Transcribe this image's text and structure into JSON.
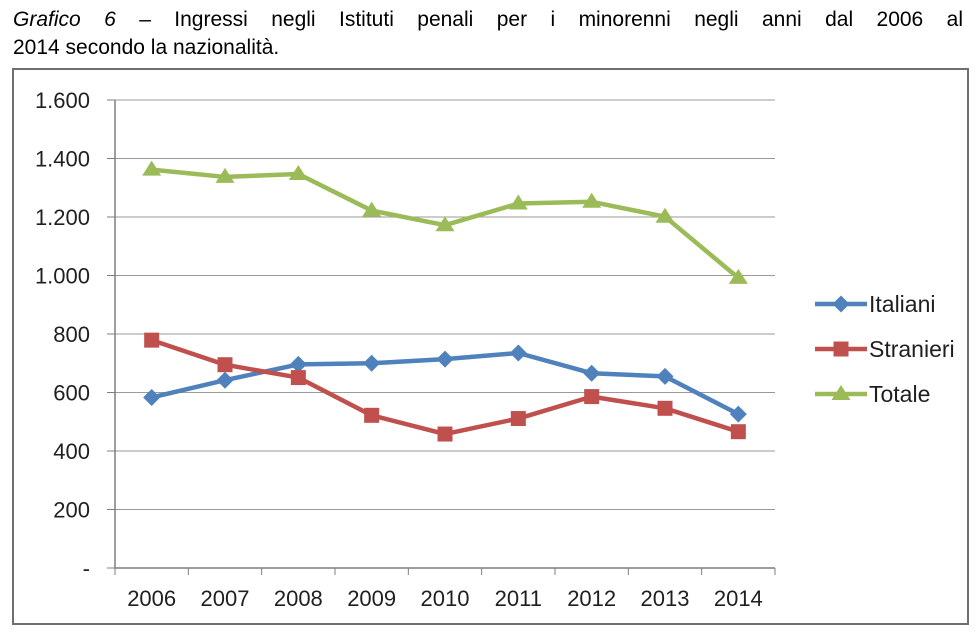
{
  "caption": {
    "label": "Grafico 6",
    "line1_rest": " – Ingressi negli Istituti penali per i minorenni negli anni dal 2006 al",
    "line2": "2014 secondo la nazionalità."
  },
  "chart_data": {
    "type": "line",
    "title": "Grafico 6 – Ingressi negli Istituti penali per i minorenni negli anni dal 2006 al 2014 secondo la nazionalità.",
    "categories": [
      "2006",
      "2007",
      "2008",
      "2009",
      "2010",
      "2011",
      "2012",
      "2013",
      "2014"
    ],
    "series": [
      {
        "name": "Italiani",
        "color": "#4F81BD",
        "marker": "diamond",
        "values": [
          583,
          642,
          696,
          700,
          714,
          735,
          666,
          655,
          526
        ]
      },
      {
        "name": "Stranieri",
        "color": "#C0504D",
        "marker": "square",
        "values": [
          779,
          695,
          651,
          522,
          458,
          511,
          586,
          546,
          466
        ]
      },
      {
        "name": "Totale",
        "color": "#9BBB59",
        "marker": "triangle",
        "values": [
          1362,
          1337,
          1347,
          1222,
          1172,
          1246,
          1252,
          1201,
          992
        ]
      }
    ],
    "xlabel": "",
    "ylabel": "",
    "ylim": [
      0,
      1600
    ],
    "ytick_step": 200,
    "ytick_labels": [
      "-",
      "200",
      "400",
      "600",
      "800",
      "1.000",
      "1.200",
      "1.400",
      "1.600"
    ],
    "grid": true,
    "legend_position": "right"
  },
  "colors": {
    "italiani": "#4F81BD",
    "stranieri": "#C0504D",
    "totale": "#9BBB59",
    "axis": "#7F7F7F",
    "gridline": "#9A9A9A",
    "box_border": "#6F6F6F",
    "text": "#1F1F1F",
    "caption_text": "#000000"
  }
}
